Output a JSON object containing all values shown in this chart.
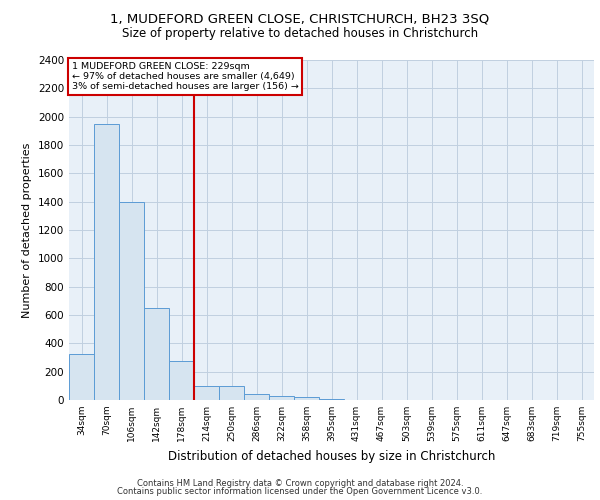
{
  "title_line1": "1, MUDEFORD GREEN CLOSE, CHRISTCHURCH, BH23 3SQ",
  "title_line2": "Size of property relative to detached houses in Christchurch",
  "xlabel": "Distribution of detached houses by size in Christchurch",
  "ylabel": "Number of detached properties",
  "footnote1": "Contains HM Land Registry data © Crown copyright and database right 2024.",
  "footnote2": "Contains public sector information licensed under the Open Government Licence v3.0.",
  "annotation_line1": "1 MUDEFORD GREEN CLOSE: 229sqm",
  "annotation_line2": "← 97% of detached houses are smaller (4,649)",
  "annotation_line3": "3% of semi-detached houses are larger (156) →",
  "bar_labels": [
    "34sqm",
    "70sqm",
    "106sqm",
    "142sqm",
    "178sqm",
    "214sqm",
    "250sqm",
    "286sqm",
    "322sqm",
    "358sqm",
    "395sqm",
    "431sqm",
    "467sqm",
    "503sqm",
    "539sqm",
    "575sqm",
    "611sqm",
    "647sqm",
    "683sqm",
    "719sqm",
    "755sqm"
  ],
  "bar_values": [
    325,
    1950,
    1400,
    650,
    275,
    100,
    100,
    45,
    30,
    20,
    10,
    0,
    0,
    0,
    0,
    0,
    0,
    0,
    0,
    0,
    0
  ],
  "bar_color": "#d6e4f0",
  "bar_edge_color": "#5b9bd5",
  "background_color": "#ffffff",
  "plot_bg_color": "#e8f0f8",
  "grid_color": "#c0cfe0",
  "ylim": [
    0,
    2400
  ],
  "yticks": [
    0,
    200,
    400,
    600,
    800,
    1000,
    1200,
    1400,
    1600,
    1800,
    2000,
    2200,
    2400
  ],
  "annotation_box_color": "#cc0000",
  "red_line_x": 5,
  "property_sqm": 229,
  "num_bins": 21
}
